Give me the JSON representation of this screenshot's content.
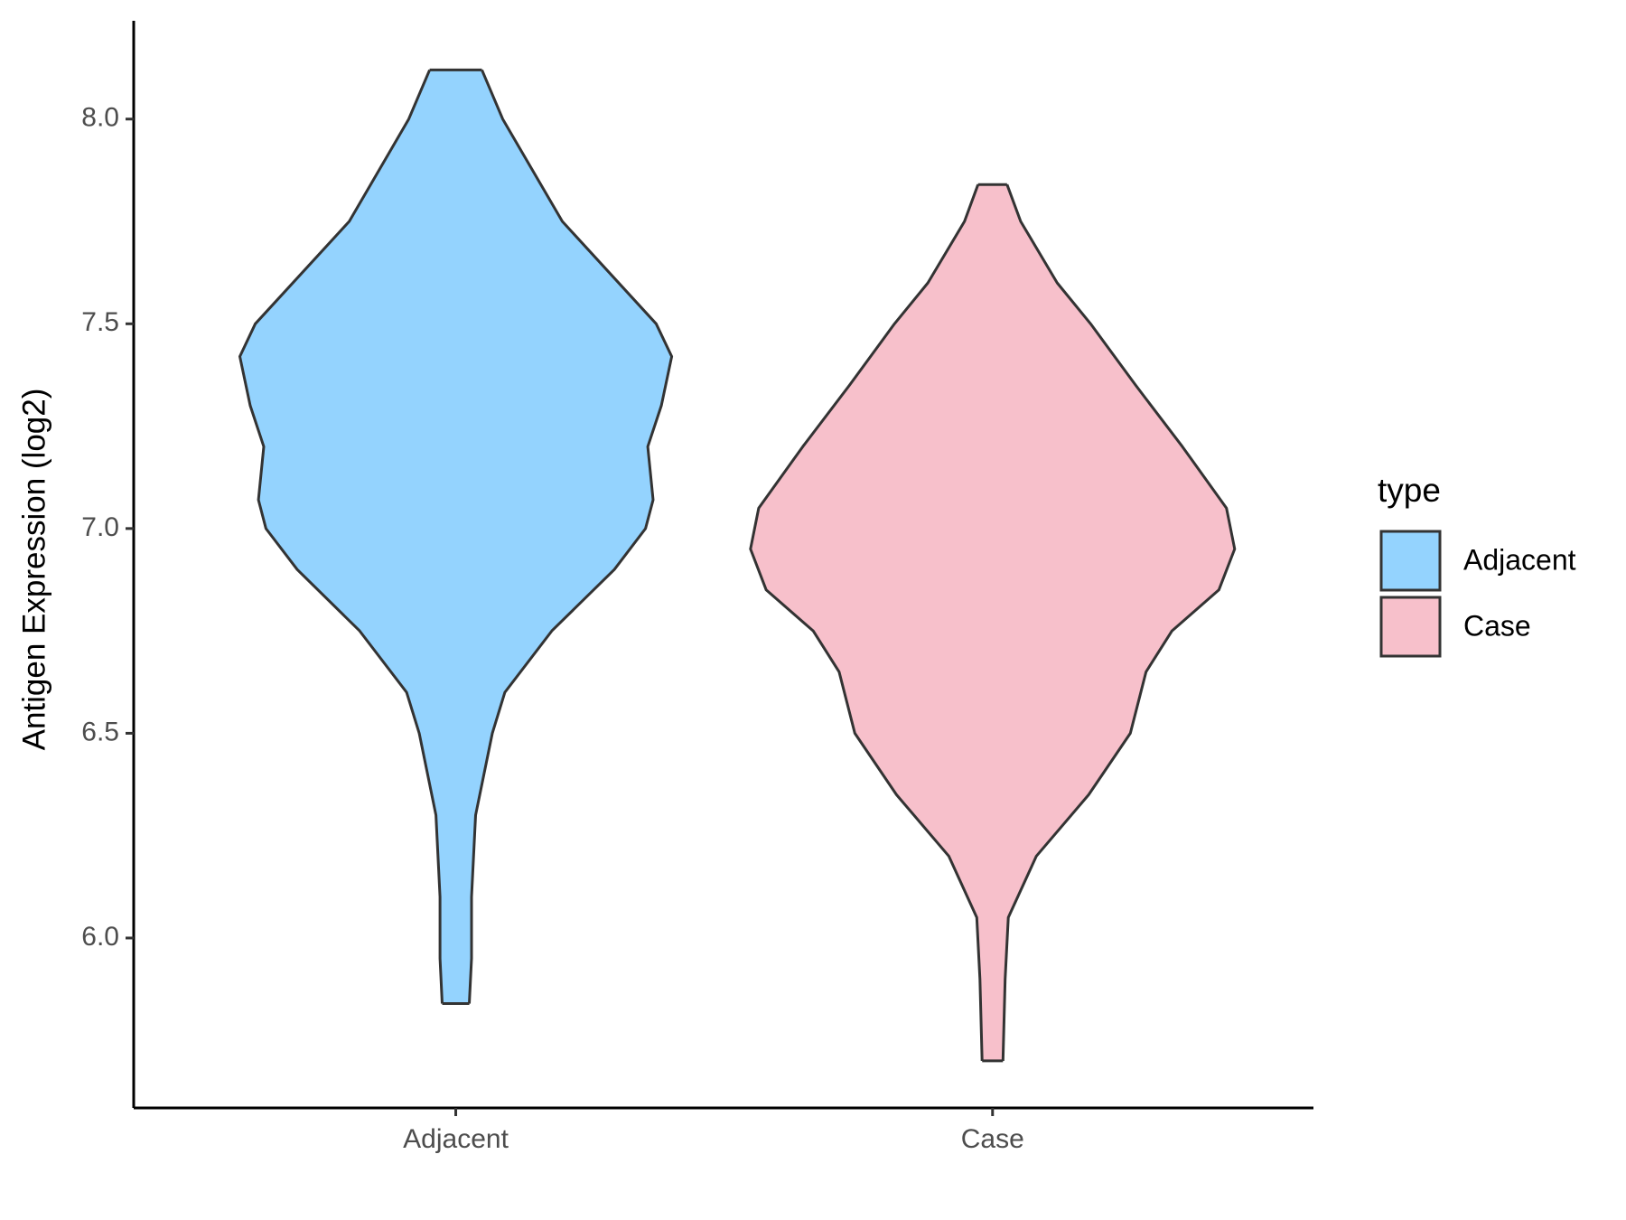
{
  "chart_data": {
    "type": "violin",
    "y_label": "Antigen Expression (log2)",
    "categories": [
      "Adjacent",
      "Case"
    ],
    "legend_title": "type",
    "series": [
      {
        "name": "Adjacent",
        "color": "#94d3fe",
        "y": [
          8.12,
          8.0,
          7.75,
          7.5,
          7.42,
          7.3,
          7.2,
          7.07,
          7.0,
          6.9,
          6.75,
          6.6,
          6.5,
          6.3,
          6.1,
          5.95,
          5.84
        ],
        "density": [
          0.108,
          0.194,
          0.44,
          0.828,
          0.892,
          0.849,
          0.793,
          0.815,
          0.784,
          0.655,
          0.397,
          0.203,
          0.151,
          0.082,
          0.065,
          0.065,
          0.056
        ]
      },
      {
        "name": "Case",
        "color": "#f7c0cb",
        "y": [
          7.84,
          7.75,
          7.6,
          7.5,
          7.35,
          7.2,
          7.05,
          6.95,
          6.85,
          6.75,
          6.65,
          6.5,
          6.35,
          6.2,
          6.05,
          5.9,
          5.7
        ],
        "density": [
          0.06,
          0.116,
          0.267,
          0.405,
          0.591,
          0.784,
          0.966,
          1,
          0.935,
          0.741,
          0.634,
          0.569,
          0.397,
          0.181,
          0.065,
          0.052,
          0.043
        ]
      }
    ],
    "ylim": [
      5.585,
      8.24
    ],
    "yticks": [
      {
        "value": 6,
        "label": "6.0"
      },
      6.5,
      {
        "value": 7,
        "label": "7.0"
      },
      7.5,
      {
        "value": 8,
        "label": "8.0"
      }
    ],
    "legend_position": "right"
  }
}
